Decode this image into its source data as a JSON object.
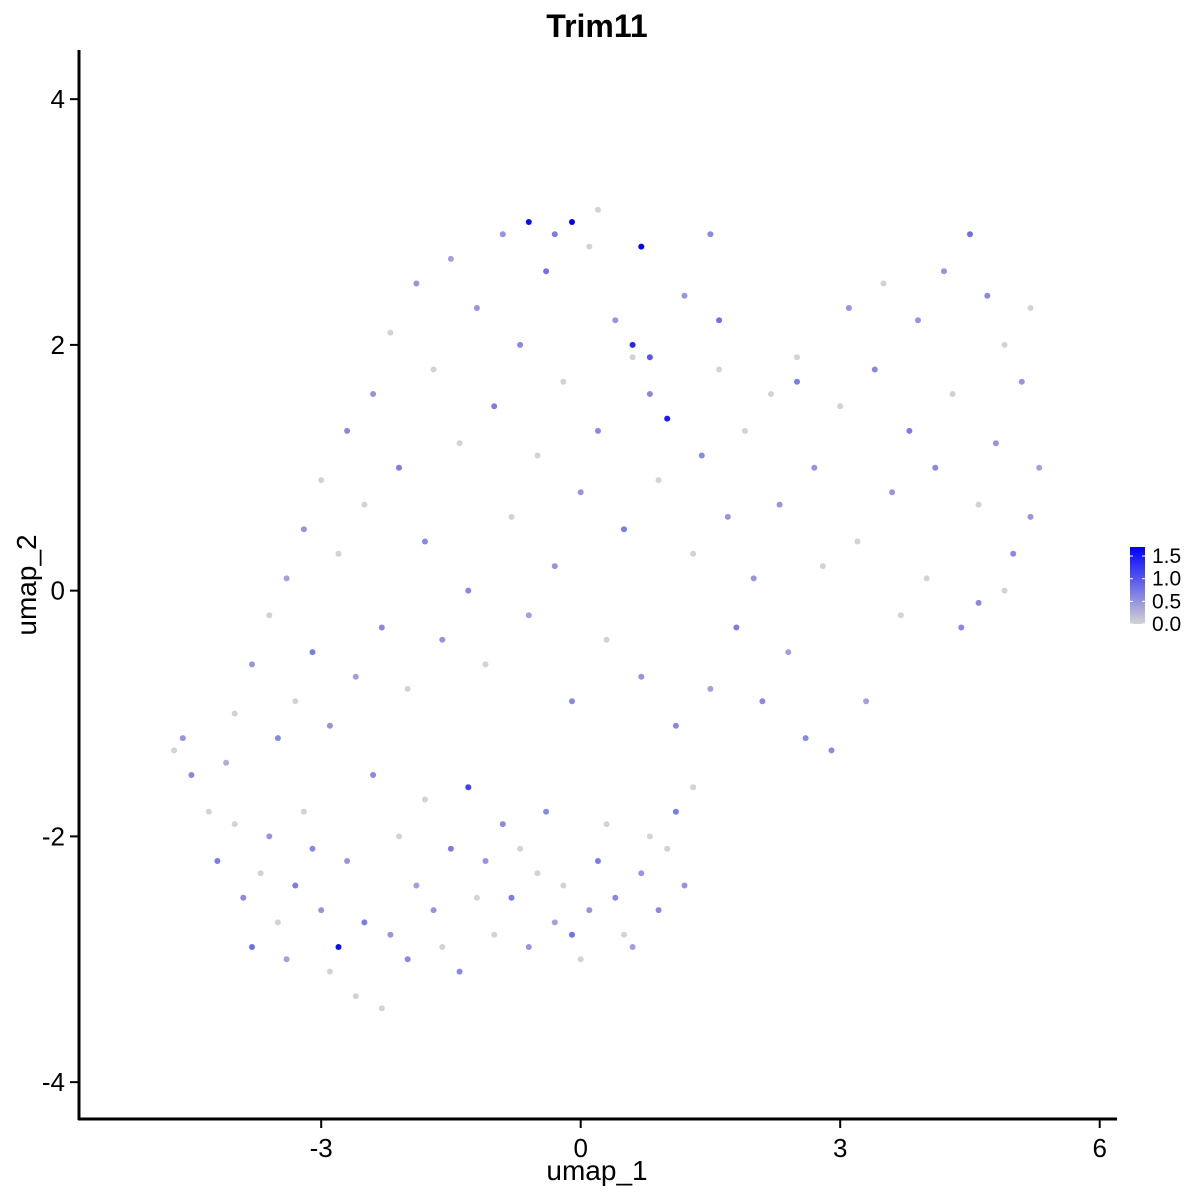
{
  "chart_data": {
    "type": "scatter",
    "title": "Trim11",
    "xlabel": "umap_1",
    "ylabel": "umap_2",
    "xlim": [
      -5.8,
      6.2
    ],
    "ylim": [
      -4.3,
      4.4
    ],
    "x_ticks": [
      -3,
      0,
      3,
      6
    ],
    "y_ticks": [
      -4,
      -2,
      0,
      2,
      4
    ],
    "x_tick_labels": [
      "-3",
      "0",
      "3",
      "6"
    ],
    "y_tick_labels": [
      "-4",
      "-2",
      "0",
      "2",
      "4"
    ],
    "grid": false,
    "color_scale": {
      "low_color": "#d3d3d3",
      "high_color": "#0000ff",
      "min": 0,
      "max": 1.7,
      "ticks": [
        0,
        0.5,
        1.0,
        1.5
      ],
      "tick_labels": [
        "0.0",
        "0.5",
        "1.0",
        "1.5"
      ],
      "placement": "right"
    },
    "points": [
      [
        -4.7,
        -1.3,
        0
      ],
      [
        -4.6,
        -1.2,
        0.5
      ],
      [
        -4.5,
        -1.5,
        0.6
      ],
      [
        -4.3,
        -1.8,
        0
      ],
      [
        -4.2,
        -2.2,
        0.7
      ],
      [
        -4.1,
        -1.4,
        0.3
      ],
      [
        -4.0,
        -1.9,
        0
      ],
      [
        -3.9,
        -2.5,
        0.6
      ],
      [
        -3.8,
        -2.9,
        0.8
      ],
      [
        -3.7,
        -2.3,
        0
      ],
      [
        -3.6,
        -2.0,
        0.5
      ],
      [
        -3.5,
        -2.7,
        0
      ],
      [
        -3.4,
        -3.0,
        0.4
      ],
      [
        -3.3,
        -2.4,
        0.7
      ],
      [
        -3.2,
        -1.8,
        0
      ],
      [
        -3.1,
        -2.1,
        0.6
      ],
      [
        -3.0,
        -2.6,
        0.5
      ],
      [
        -2.9,
        -3.1,
        0
      ],
      [
        -2.8,
        -2.9,
        1.6
      ],
      [
        -2.7,
        -2.2,
        0.5
      ],
      [
        -2.6,
        -3.3,
        0
      ],
      [
        -2.5,
        -2.7,
        0.7
      ],
      [
        -2.4,
        -1.5,
        0.6
      ],
      [
        -2.3,
        -3.4,
        0
      ],
      [
        -2.2,
        -2.8,
        0.5
      ],
      [
        -2.1,
        -2.0,
        0
      ],
      [
        -2.0,
        -3.0,
        0.6
      ],
      [
        -1.9,
        -2.4,
        0.4
      ],
      [
        -1.8,
        -1.7,
        0
      ],
      [
        -1.7,
        -2.6,
        0.5
      ],
      [
        -1.6,
        -2.9,
        0
      ],
      [
        -1.5,
        -2.1,
        0.7
      ],
      [
        -1.4,
        -3.1,
        0.6
      ],
      [
        -1.3,
        -1.6,
        1.2
      ],
      [
        -1.2,
        -2.5,
        0
      ],
      [
        -1.1,
        -2.2,
        0.5
      ],
      [
        -1.0,
        -2.8,
        0
      ],
      [
        -0.9,
        -1.9,
        0.6
      ],
      [
        -0.8,
        -2.5,
        0.7
      ],
      [
        -0.7,
        -2.1,
        0
      ],
      [
        -0.6,
        -2.9,
        0.5
      ],
      [
        -0.5,
        -2.3,
        0
      ],
      [
        -0.4,
        -1.8,
        0.6
      ],
      [
        -0.3,
        -2.7,
        0.4
      ],
      [
        -0.2,
        -2.4,
        0
      ],
      [
        -0.1,
        -2.8,
        0.8
      ],
      [
        0.0,
        -3.0,
        0
      ],
      [
        0.1,
        -2.6,
        0.5
      ],
      [
        0.2,
        -2.2,
        0.7
      ],
      [
        0.3,
        -1.9,
        0
      ],
      [
        0.4,
        -2.5,
        0.6
      ],
      [
        0.5,
        -2.8,
        0
      ],
      [
        0.6,
        -2.9,
        0.4
      ],
      [
        0.7,
        -2.3,
        0.5
      ],
      [
        0.8,
        -2.0,
        0
      ],
      [
        0.9,
        -2.6,
        0.6
      ],
      [
        1.0,
        -2.1,
        0
      ],
      [
        1.1,
        -1.8,
        0.7
      ],
      [
        1.2,
        -2.4,
        0.5
      ],
      [
        1.3,
        -1.6,
        0
      ],
      [
        -4.0,
        -1.0,
        0
      ],
      [
        -3.8,
        -0.6,
        0.5
      ],
      [
        -3.6,
        -0.2,
        0
      ],
      [
        -3.5,
        -1.2,
        0.6
      ],
      [
        -3.4,
        0.1,
        0.4
      ],
      [
        -3.3,
        -0.9,
        0
      ],
      [
        -3.2,
        0.5,
        0.5
      ],
      [
        -3.1,
        -0.5,
        0.7
      ],
      [
        -3.0,
        0.9,
        0
      ],
      [
        -2.9,
        -1.1,
        0.5
      ],
      [
        -2.8,
        0.3,
        0
      ],
      [
        -2.7,
        1.3,
        0.6
      ],
      [
        -2.6,
        -0.7,
        0.4
      ],
      [
        -2.5,
        0.7,
        0
      ],
      [
        -2.4,
        1.6,
        0.5
      ],
      [
        -2.3,
        -0.3,
        0.6
      ],
      [
        -2.2,
        2.1,
        0
      ],
      [
        -2.1,
        1.0,
        0.7
      ],
      [
        -2.0,
        -0.8,
        0
      ],
      [
        -1.9,
        2.5,
        0.5
      ],
      [
        -1.8,
        0.4,
        0.6
      ],
      [
        -1.7,
        1.8,
        0
      ],
      [
        -1.6,
        -0.4,
        0.5
      ],
      [
        -1.5,
        2.7,
        0.4
      ],
      [
        -1.4,
        1.2,
        0
      ],
      [
        -1.3,
        0.0,
        0.6
      ],
      [
        -1.2,
        2.3,
        0.5
      ],
      [
        -1.1,
        -0.6,
        0
      ],
      [
        -1.0,
        1.5,
        0.7
      ],
      [
        -0.9,
        2.9,
        0.5
      ],
      [
        -0.8,
        0.6,
        0
      ],
      [
        -0.7,
        2.0,
        0.6
      ],
      [
        -0.6,
        -0.2,
        0.4
      ],
      [
        -0.5,
        1.1,
        0
      ],
      [
        -0.4,
        2.6,
        0.8
      ],
      [
        -0.3,
        0.2,
        0.5
      ],
      [
        -0.2,
        1.7,
        0
      ],
      [
        -0.1,
        -0.9,
        0.6
      ],
      [
        0.0,
        0.8,
        0.5
      ],
      [
        0.1,
        2.8,
        0
      ],
      [
        0.2,
        1.3,
        0.6
      ],
      [
        0.3,
        -0.4,
        0
      ],
      [
        0.4,
        2.2,
        0.5
      ],
      [
        0.5,
        0.5,
        0.7
      ],
      [
        0.6,
        1.9,
        0
      ],
      [
        0.7,
        -0.7,
        0.5
      ],
      [
        0.8,
        1.6,
        0.6
      ],
      [
        0.9,
        0.9,
        0
      ],
      [
        1.0,
        1.4,
        1.5
      ],
      [
        1.1,
        -1.1,
        0.6
      ],
      [
        1.2,
        2.4,
        0.5
      ],
      [
        1.3,
        0.3,
        0
      ],
      [
        1.4,
        1.1,
        0.6
      ],
      [
        1.5,
        -0.8,
        0.4
      ],
      [
        1.6,
        1.8,
        0
      ],
      [
        1.7,
        0.6,
        0.5
      ],
      [
        1.8,
        -0.3,
        0.7
      ],
      [
        1.9,
        1.3,
        0
      ],
      [
        2.0,
        0.1,
        0.5
      ],
      [
        2.1,
        -0.9,
        0.6
      ],
      [
        2.2,
        1.6,
        0
      ],
      [
        2.3,
        0.7,
        0.5
      ],
      [
        2.4,
        -0.5,
        0.4
      ],
      [
        2.5,
        1.9,
        0
      ],
      [
        2.6,
        -1.2,
        0.6
      ],
      [
        2.7,
        1.0,
        0.5
      ],
      [
        2.8,
        0.2,
        0
      ],
      [
        2.9,
        -1.3,
        0.6
      ],
      [
        3.0,
        1.5,
        0
      ],
      [
        3.1,
        2.3,
        0.5
      ],
      [
        3.2,
        0.4,
        0
      ],
      [
        3.3,
        -0.9,
        0.4
      ],
      [
        3.4,
        1.8,
        0.6
      ],
      [
        3.5,
        2.5,
        0
      ],
      [
        3.6,
        0.8,
        0.5
      ],
      [
        3.7,
        -0.2,
        0
      ],
      [
        3.8,
        1.3,
        0.7
      ],
      [
        3.9,
        2.2,
        0.5
      ],
      [
        4.0,
        0.1,
        0
      ],
      [
        4.1,
        1.0,
        0.6
      ],
      [
        4.2,
        2.6,
        0.5
      ],
      [
        4.3,
        1.6,
        0
      ],
      [
        4.4,
        -0.3,
        0.6
      ],
      [
        4.5,
        2.9,
        0.8
      ],
      [
        4.6,
        0.7,
        0
      ],
      [
        4.7,
        2.4,
        0.6
      ],
      [
        4.8,
        1.2,
        0.5
      ],
      [
        4.9,
        2.0,
        0
      ],
      [
        5.0,
        0.3,
        0.6
      ],
      [
        5.1,
        1.7,
        0.5
      ],
      [
        5.2,
        2.3,
        0
      ],
      [
        5.3,
        1.0,
        0.4
      ],
      [
        5.2,
        0.6,
        0.5
      ],
      [
        4.9,
        0.0,
        0
      ],
      [
        4.6,
        -0.1,
        0.6
      ],
      [
        -0.6,
        3.0,
        1.6
      ],
      [
        -0.1,
        3.0,
        1.7
      ],
      [
        0.7,
        2.8,
        1.7
      ],
      [
        0.2,
        3.1,
        0
      ],
      [
        -0.3,
        2.9,
        0.7
      ],
      [
        1.5,
        2.9,
        0.6
      ],
      [
        1.6,
        2.2,
        0.8
      ],
      [
        2.5,
        1.7,
        0.7
      ],
      [
        0.6,
        2.0,
        1.4
      ],
      [
        0.8,
        1.9,
        1.0
      ]
    ]
  }
}
